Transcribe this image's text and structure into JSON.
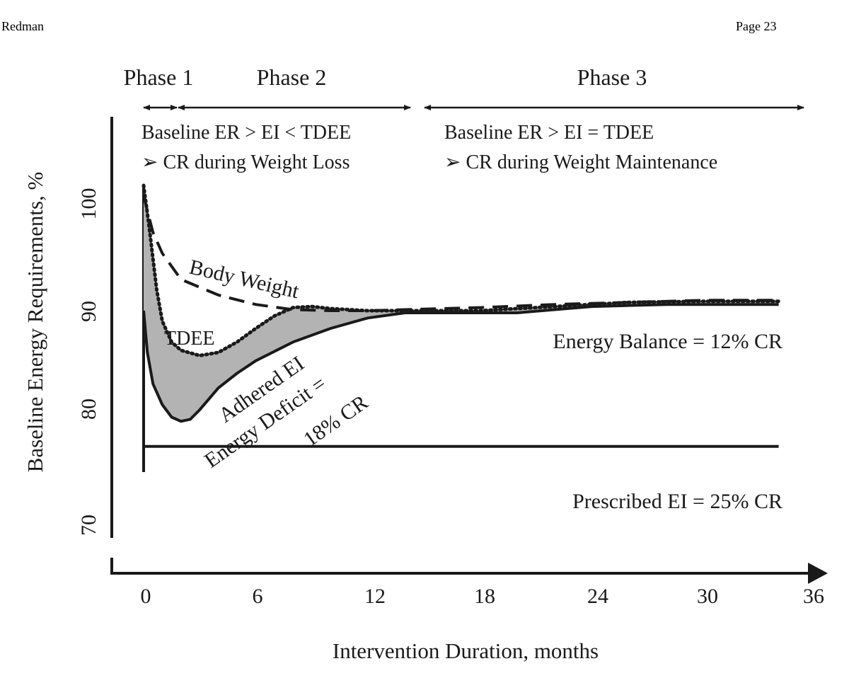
{
  "header": {
    "author": "Redman",
    "page": "Page 23"
  },
  "chart_data": {
    "type": "line",
    "xlabel": "Intervention Duration, months",
    "ylabel": "Baseline Energy Requirements, %",
    "x_ticks": [
      "0",
      "6",
      "12",
      "18",
      "24",
      "30",
      "36"
    ],
    "y_ticks": [
      "70",
      "80",
      "90",
      "100"
    ],
    "xlim": [
      0,
      36
    ],
    "ylim": [
      70,
      100
    ],
    "phases": [
      {
        "label": "Phase 1",
        "months": [
          0,
          2
        ]
      },
      {
        "label": "Phase 2",
        "months": [
          2,
          14
        ]
      },
      {
        "label": "Phase 3",
        "months": [
          15,
          36
        ]
      }
    ],
    "phase_notes": [
      {
        "line1": "Baseline ER > EI < TDEE",
        "line2": "➢ CR during Weight Loss"
      },
      {
        "line1": "Baseline ER > EI = TDEE",
        "line2": "➢ CR during Weight Maintenance"
      }
    ],
    "annotations": {
      "body_weight": "Body Weight",
      "tdee": "TDEE",
      "adhered_ei": "Adhered EI",
      "deficit_line1": "Energy Deficit =",
      "deficit_line2": "18% CR",
      "energy_balance": "Energy Balance = 12% CR",
      "prescribed": "Prescribed EI = 25% CR"
    },
    "series": [
      {
        "name": "Body Weight",
        "style": "dashed",
        "x": [
          0,
          0.5,
          1,
          2,
          4,
          6,
          8,
          10,
          12,
          14,
          18,
          22,
          26,
          30,
          34
        ],
        "y": [
          99,
          95.5,
          93.5,
          91,
          89.5,
          88.6,
          88.1,
          88.0,
          88.0,
          88.1,
          88.3,
          88.6,
          88.8,
          89.0,
          89.0
        ]
      },
      {
        "name": "TDEE",
        "style": "dotted",
        "x": [
          0,
          0.3,
          0.7,
          1,
          1.5,
          2,
          3,
          4,
          5,
          6,
          7,
          8,
          9,
          10,
          12,
          14,
          18,
          22,
          26,
          30,
          34
        ],
        "y": [
          100,
          96,
          90,
          87,
          85,
          84.2,
          83.7,
          84.0,
          85.0,
          86.3,
          87.5,
          88.3,
          88.4,
          88.2,
          88.0,
          88.0,
          88.0,
          88.4,
          88.8,
          88.9,
          88.9
        ]
      },
      {
        "name": "Adhered EI",
        "style": "solid",
        "x": [
          0,
          0.2,
          0.5,
          1,
          1.5,
          2,
          2.5,
          3,
          4,
          5,
          6,
          8,
          10,
          12,
          14,
          16,
          18,
          20,
          22,
          24,
          28,
          34
        ],
        "y": [
          88,
          84,
          81,
          79,
          77.8,
          77.4,
          77.6,
          78.5,
          80.6,
          82.0,
          83.2,
          85.0,
          86.3,
          87.3,
          87.8,
          87.8,
          87.8,
          87.8,
          88.1,
          88.4,
          88.6,
          88.6
        ]
      },
      {
        "name": "Prescribed EI",
        "style": "solid",
        "x": [
          0,
          34
        ],
        "y": [
          75,
          75
        ]
      }
    ],
    "shaded_between": [
      "TDEE",
      "Adhered EI"
    ],
    "grid": false
  }
}
